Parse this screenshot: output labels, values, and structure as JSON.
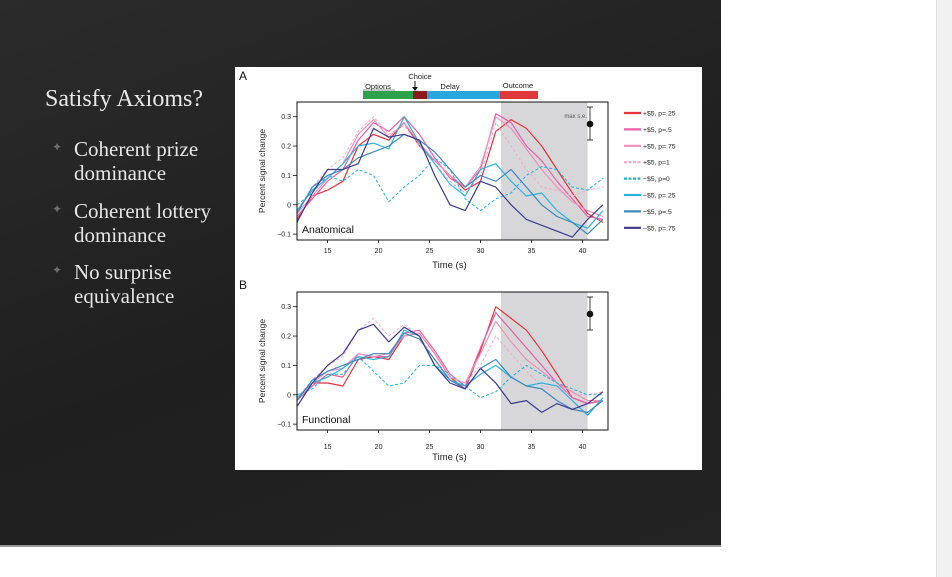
{
  "slide": {
    "title": "Satisfy Axioms?",
    "bullets": [
      {
        "text": "Coherent prize dominance"
      },
      {
        "text": "Coherent lottery dominance"
      },
      {
        "text": "No surprise equivalence"
      }
    ]
  },
  "figure": {
    "phases": [
      {
        "label": "Options",
        "color": "#2aa34a"
      },
      {
        "label": "Choice",
        "color": "#8b1a1a"
      },
      {
        "label": "Delay",
        "color": "#29a8df"
      },
      {
        "label": "Outcome",
        "color": "#e0393c"
      }
    ],
    "se_label": "max s.e.",
    "legend": [
      {
        "label": "+$5, p=.25",
        "color": "#e8323a",
        "dash": false
      },
      {
        "label": "+$5, p=.5",
        "color": "#ea5fa8",
        "dash": false
      },
      {
        "label": "+$5, p=.75",
        "color": "#ee8fbb",
        "dash": false
      },
      {
        "label": "+$5, p=1",
        "color": "#f2a9c8",
        "dash": true
      },
      {
        "label": "−$5, p=0",
        "color": "#1fb2dd",
        "dash": true
      },
      {
        "label": "−$5, p=.25",
        "color": "#2bb4e0",
        "dash": false
      },
      {
        "label": "−$5, p=.5",
        "color": "#3f88bd",
        "dash": false
      },
      {
        "label": "−$5, p=.75",
        "color": "#3d3a8f",
        "dash": false
      }
    ]
  },
  "chart_data": [
    {
      "type": "line",
      "panel_letter": "A",
      "panel_label": "Anatomical",
      "xlabel": "Time (s)",
      "ylabel": "Percent signal change",
      "xlim": [
        12,
        42.5
      ],
      "ylim": [
        -0.12,
        0.35
      ],
      "xticks": [
        15,
        20,
        25,
        30,
        35,
        40
      ],
      "yticks": [
        -0.1,
        0,
        0.1,
        0.2,
        0.3
      ],
      "ytick_labels": [
        "−0.1",
        "0",
        "0.1",
        "0.2",
        "0.3"
      ],
      "shaded_x": [
        32,
        40.5
      ],
      "x": [
        12,
        13.5,
        15,
        16.5,
        18,
        19.5,
        21,
        22.5,
        24,
        25.5,
        27,
        28.5,
        30,
        31.5,
        33,
        34.5,
        36,
        37.5,
        39,
        40.5,
        42
      ],
      "series": [
        {
          "name": "+$5, p=.25",
          "values": [
            -0.05,
            0.03,
            0.05,
            0.08,
            0.2,
            0.24,
            0.22,
            0.28,
            0.2,
            0.15,
            0.1,
            0.05,
            0.08,
            0.25,
            0.29,
            0.26,
            0.2,
            0.12,
            0.04,
            -0.03,
            -0.06
          ]
        },
        {
          "name": "+$5, p=.5",
          "values": [
            -0.04,
            0.02,
            0.08,
            0.12,
            0.22,
            0.28,
            0.25,
            0.3,
            0.24,
            0.16,
            0.09,
            0.06,
            0.12,
            0.31,
            0.28,
            0.2,
            0.15,
            0.08,
            0.02,
            -0.04,
            -0.05
          ]
        },
        {
          "name": "+$5, p=.75",
          "values": [
            -0.03,
            0.03,
            0.09,
            0.14,
            0.24,
            0.29,
            0.23,
            0.28,
            0.21,
            0.15,
            0.1,
            0.06,
            0.13,
            0.3,
            0.26,
            0.19,
            0.12,
            0.06,
            0.01,
            -0.02,
            -0.04
          ]
        },
        {
          "name": "+$5, p=1",
          "values": [
            -0.02,
            0.06,
            0.12,
            0.16,
            0.25,
            0.3,
            0.24,
            0.27,
            0.2,
            0.14,
            0.08,
            0.04,
            0.1,
            0.28,
            0.2,
            0.12,
            0.06,
            0.05,
            0.03,
            0.05,
            0.06
          ]
        },
        {
          "name": "−$5, p=0",
          "values": [
            0.0,
            0.04,
            0.1,
            0.08,
            0.12,
            0.1,
            0.01,
            0.06,
            0.1,
            0.16,
            0.12,
            0.02,
            -0.02,
            0.02,
            0.04,
            0.1,
            0.13,
            0.12,
            0.06,
            0.05,
            0.09
          ]
        },
        {
          "name": "−$5, p=.25",
          "values": [
            -0.02,
            0.05,
            0.09,
            0.14,
            0.2,
            0.21,
            0.19,
            0.3,
            0.21,
            0.14,
            0.07,
            0.03,
            0.12,
            0.14,
            0.08,
            0.03,
            0.04,
            -0.02,
            -0.06,
            -0.08,
            -0.02
          ]
        },
        {
          "name": "−$5, p=.5",
          "values": [
            -0.03,
            0.06,
            0.1,
            0.12,
            0.16,
            0.18,
            0.2,
            0.24,
            0.22,
            0.18,
            0.12,
            0.06,
            0.1,
            0.08,
            0.12,
            0.06,
            0.0,
            -0.04,
            -0.06,
            -0.1,
            -0.05
          ]
        },
        {
          "name": "−$5, p=.75",
          "values": [
            -0.06,
            0.04,
            0.12,
            0.12,
            0.14,
            0.26,
            0.23,
            0.24,
            0.22,
            0.1,
            0.0,
            -0.02,
            0.08,
            0.06,
            0.0,
            -0.05,
            -0.07,
            -0.09,
            -0.11,
            -0.05,
            0.0
          ]
        }
      ]
    },
    {
      "type": "line",
      "panel_letter": "B",
      "panel_label": "Functional",
      "xlabel": "Time (s)",
      "ylabel": "Percent signal change",
      "xlim": [
        12,
        42.5
      ],
      "ylim": [
        -0.12,
        0.35
      ],
      "xticks": [
        15,
        20,
        25,
        30,
        35,
        40
      ],
      "yticks": [
        -0.1,
        0,
        0.1,
        0.2,
        0.3
      ],
      "ytick_labels": [
        "−0.1",
        "0",
        "0.1",
        "0.2",
        "0.3"
      ],
      "shaded_x": [
        32,
        40.5
      ],
      "x": [
        12,
        13.5,
        15,
        16.5,
        18,
        19.5,
        21,
        22.5,
        24,
        25.5,
        27,
        28.5,
        30,
        31.5,
        33,
        34.5,
        36,
        37.5,
        39,
        40.5,
        42
      ],
      "series": [
        {
          "name": "+$5, p=.25",
          "values": [
            -0.02,
            0.04,
            0.04,
            0.03,
            0.12,
            0.13,
            0.12,
            0.2,
            0.21,
            0.14,
            0.06,
            0.02,
            0.15,
            0.3,
            0.26,
            0.22,
            0.15,
            0.07,
            -0.01,
            -0.03,
            -0.02
          ]
        },
        {
          "name": "+$5, p=.5",
          "values": [
            -0.02,
            0.03,
            0.07,
            0.06,
            0.14,
            0.13,
            0.13,
            0.21,
            0.22,
            0.15,
            0.07,
            0.03,
            0.16,
            0.28,
            0.22,
            0.16,
            0.1,
            0.04,
            -0.01,
            -0.03,
            -0.02
          ]
        },
        {
          "name": "+$5, p=.75",
          "values": [
            -0.02,
            0.04,
            0.08,
            0.09,
            0.14,
            0.13,
            0.14,
            0.2,
            0.21,
            0.14,
            0.06,
            0.04,
            0.14,
            0.25,
            0.18,
            0.12,
            0.08,
            0.04,
            0.01,
            -0.02,
            -0.02
          ]
        },
        {
          "name": "+$5, p=1",
          "values": [
            -0.01,
            0.05,
            0.1,
            0.13,
            0.22,
            0.26,
            0.2,
            0.24,
            0.2,
            0.12,
            0.06,
            0.04,
            0.1,
            0.2,
            0.14,
            0.08,
            0.03,
            0.02,
            0.0,
            0.0,
            0.01
          ]
        },
        {
          "name": "−$5, p=0",
          "values": [
            0.0,
            0.02,
            0.07,
            0.07,
            0.13,
            0.08,
            0.03,
            0.04,
            0.1,
            0.1,
            0.07,
            0.03,
            -0.01,
            0.01,
            0.06,
            0.1,
            0.07,
            0.04,
            0.02,
            0.0,
            0.0
          ]
        },
        {
          "name": "−$5, p=.25",
          "values": [
            -0.01,
            0.04,
            0.06,
            0.09,
            0.13,
            0.12,
            0.13,
            0.22,
            0.2,
            0.1,
            0.05,
            0.03,
            0.07,
            0.1,
            0.06,
            0.03,
            0.04,
            0.03,
            -0.02,
            -0.07,
            -0.01
          ]
        },
        {
          "name": "−$5, p=.5",
          "values": [
            -0.02,
            0.05,
            0.08,
            0.1,
            0.12,
            0.14,
            0.14,
            0.21,
            0.19,
            0.12,
            0.05,
            0.02,
            0.09,
            0.12,
            0.06,
            0.03,
            0.02,
            -0.02,
            -0.05,
            -0.06,
            -0.02
          ]
        },
        {
          "name": "−$5, p=.75",
          "values": [
            -0.04,
            0.04,
            0.1,
            0.14,
            0.22,
            0.24,
            0.18,
            0.23,
            0.2,
            0.1,
            0.04,
            0.02,
            0.09,
            0.04,
            -0.03,
            -0.02,
            -0.06,
            -0.03,
            -0.05,
            -0.03,
            0.01
          ]
        }
      ]
    }
  ]
}
